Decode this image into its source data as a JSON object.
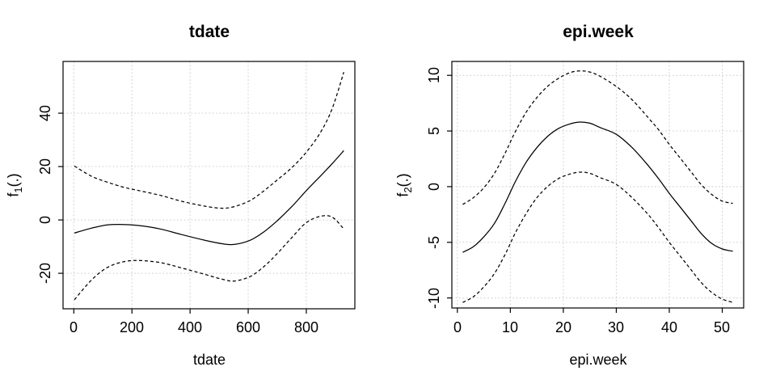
{
  "figure": {
    "background": "#ffffff",
    "axis_color": "#000000",
    "curve_color": "#000000",
    "grid_color": "#d4d4d4"
  },
  "chart_data": [
    {
      "type": "line",
      "title": "tdate",
      "xlabel": "tdate",
      "ylabel": {
        "base": "f",
        "sub": "1",
        "args": "(.)"
      },
      "xlim": [
        -37,
        967
      ],
      "ylim": [
        -33.3,
        59.4
      ],
      "xticks": [
        0,
        200,
        400,
        600,
        800
      ],
      "yticks": [
        -20,
        0,
        20,
        40
      ],
      "grid": true,
      "grid_style": "dotted-lightgray",
      "legend": "none",
      "series": [
        {
          "name": "estimate",
          "line": "solid",
          "x": [
            2,
            60,
            114,
            170,
            224,
            298,
            371,
            454,
            510,
            552,
            607,
            655,
            700,
            750,
            800,
            850,
            890,
            929
          ],
          "y": [
            -4.9,
            -3.1,
            -1.9,
            -1.7,
            -2.1,
            -3.4,
            -5.5,
            -7.7,
            -8.9,
            -9.2,
            -7.6,
            -4.4,
            -0.3,
            5.0,
            11.0,
            16.6,
            21.2,
            26.0
          ]
        },
        {
          "name": "upper-ci",
          "line": "dashed",
          "x": [
            2,
            60,
            114,
            170,
            224,
            298,
            371,
            454,
            510,
            552,
            607,
            655,
            700,
            750,
            800,
            850,
            890,
            929
          ],
          "y": [
            20.2,
            16.4,
            14.2,
            12.3,
            11.0,
            9.2,
            7.0,
            5.1,
            4.4,
            5.0,
            7.3,
            11.0,
            15.0,
            19.6,
            25.4,
            33.0,
            42.0,
            55.4
          ]
        },
        {
          "name": "lower-ci",
          "line": "dashed",
          "x": [
            2,
            60,
            114,
            170,
            224,
            298,
            371,
            454,
            510,
            552,
            607,
            655,
            700,
            750,
            800,
            850,
            890,
            929
          ],
          "y": [
            -29.9,
            -22.6,
            -17.9,
            -15.7,
            -15.2,
            -16.0,
            -18.0,
            -20.5,
            -22.2,
            -22.9,
            -21.2,
            -17.4,
            -12.6,
            -6.6,
            -1.0,
            1.4,
            1.0,
            -3.4
          ]
        }
      ]
    },
    {
      "type": "line",
      "title": "epi.week",
      "xlabel": "epi.week",
      "ylabel": {
        "base": "f",
        "sub": "2",
        "args": "(.)"
      },
      "xlim": [
        -1.04,
        54.04
      ],
      "ylim": [
        -10.9,
        11.25
      ],
      "xticks": [
        0,
        10,
        20,
        30,
        40,
        50
      ],
      "yticks": [
        -10,
        -5,
        0,
        5,
        10
      ],
      "grid": true,
      "grid_style": "dotted-lightgray",
      "legend": "none",
      "series": [
        {
          "name": "estimate",
          "line": "solid",
          "x": [
            1,
            3,
            5,
            7,
            9,
            11,
            13,
            15,
            17,
            19,
            21,
            23,
            25,
            27,
            30,
            33,
            36,
            38,
            40,
            42,
            44,
            46,
            48,
            50,
            52
          ],
          "y": [
            -5.9,
            -5.4,
            -4.5,
            -3.3,
            -1.5,
            0.5,
            2.2,
            3.5,
            4.5,
            5.2,
            5.6,
            5.8,
            5.7,
            5.3,
            4.7,
            3.5,
            1.9,
            0.7,
            -0.6,
            -1.8,
            -3.0,
            -4.2,
            -5.1,
            -5.6,
            -5.8
          ]
        },
        {
          "name": "upper-ci",
          "line": "dashed",
          "x": [
            1,
            3,
            5,
            7,
            9,
            11,
            13,
            15,
            17,
            19,
            21,
            23,
            25,
            27,
            30,
            33,
            36,
            38,
            40,
            42,
            44,
            46,
            48,
            50,
            52
          ],
          "y": [
            -1.6,
            -1.0,
            -0.1,
            1.2,
            3.0,
            5.0,
            6.7,
            8.0,
            9.0,
            9.7,
            10.2,
            10.4,
            10.3,
            9.9,
            9.0,
            7.8,
            6.2,
            5.1,
            3.8,
            2.6,
            1.4,
            0.2,
            -0.7,
            -1.3,
            -1.5
          ]
        },
        {
          "name": "lower-ci",
          "line": "dashed",
          "x": [
            1,
            3,
            5,
            7,
            9,
            11,
            13,
            15,
            17,
            19,
            21,
            23,
            25,
            27,
            30,
            33,
            36,
            38,
            40,
            42,
            44,
            46,
            48,
            50,
            52
          ],
          "y": [
            -10.4,
            -9.9,
            -9.0,
            -7.8,
            -6.1,
            -4.1,
            -2.4,
            -1.0,
            0.0,
            0.7,
            1.1,
            1.3,
            1.2,
            0.8,
            0.2,
            -1.0,
            -2.5,
            -3.7,
            -5.0,
            -6.2,
            -7.4,
            -8.6,
            -9.5,
            -10.1,
            -10.4
          ]
        }
      ]
    }
  ]
}
